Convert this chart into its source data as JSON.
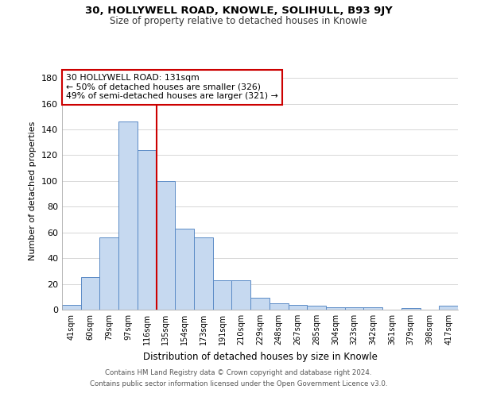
{
  "title": "30, HOLLYWELL ROAD, KNOWLE, SOLIHULL, B93 9JY",
  "subtitle": "Size of property relative to detached houses in Knowle",
  "xlabel": "Distribution of detached houses by size in Knowle",
  "ylabel": "Number of detached properties",
  "bar_labels": [
    "41sqm",
    "60sqm",
    "79sqm",
    "97sqm",
    "116sqm",
    "135sqm",
    "154sqm",
    "173sqm",
    "191sqm",
    "210sqm",
    "229sqm",
    "248sqm",
    "267sqm",
    "285sqm",
    "304sqm",
    "323sqm",
    "342sqm",
    "361sqm",
    "379sqm",
    "398sqm",
    "417sqm"
  ],
  "bar_values": [
    4,
    25,
    56,
    146,
    124,
    100,
    63,
    56,
    23,
    23,
    9,
    5,
    4,
    3,
    2,
    2,
    2,
    0,
    1,
    0,
    3
  ],
  "bar_color": "#c6d9f0",
  "bar_edge_color": "#5a8ac6",
  "property_line_x": 4.5,
  "property_line_color": "#cc0000",
  "ylim": [
    0,
    185
  ],
  "yticks": [
    0,
    20,
    40,
    60,
    80,
    100,
    120,
    140,
    160,
    180
  ],
  "annotation_title": "30 HOLLYWELL ROAD: 131sqm",
  "annotation_line1": "← 50% of detached houses are smaller (326)",
  "annotation_line2": "49% of semi-detached houses are larger (321) →",
  "annotation_box_color": "#ffffff",
  "annotation_box_edge": "#cc0000",
  "footer_line1": "Contains HM Land Registry data © Crown copyright and database right 2024.",
  "footer_line2": "Contains public sector information licensed under the Open Government Licence v3.0.",
  "background_color": "#ffffff",
  "grid_color": "#d0d0d0"
}
